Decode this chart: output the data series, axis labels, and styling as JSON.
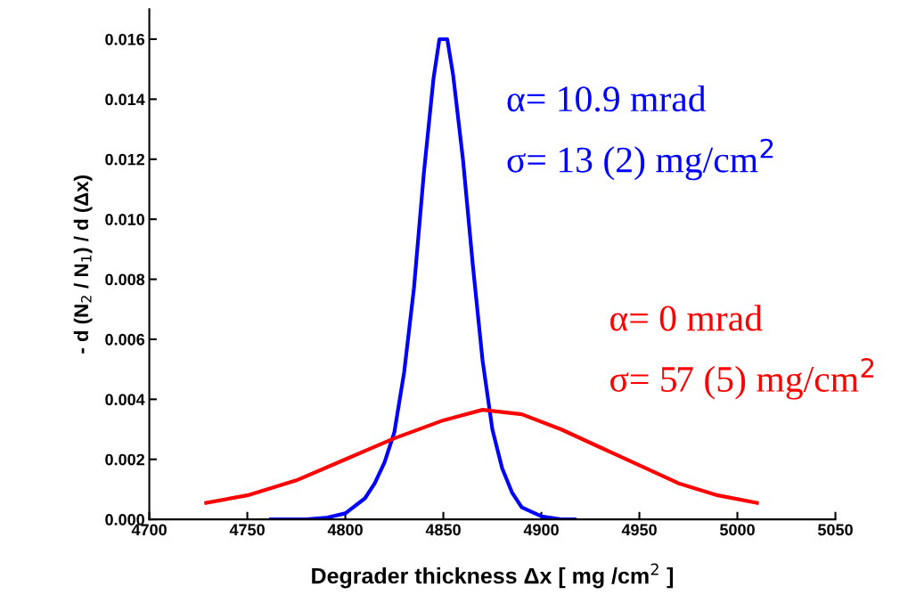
{
  "chart_data": {
    "type": "line",
    "xlabel": "Degrader thickness Δx [ mg /cm$^{2}$ ]",
    "ylabel": "- d (N$_{2}$ / N$_{1}$) / d (Δx)",
    "series": [
      {
        "color": "#0000ff",
        "x": [
          4762,
          4780,
          4790,
          4800,
          4810,
          4815,
          4820,
          4825,
          4830,
          4835,
          4840,
          4845,
          4848,
          4852,
          4855,
          4860,
          4865,
          4870,
          4875,
          4880,
          4885,
          4890,
          4900,
          4910,
          4917
        ],
        "values": [
          0.0,
          0.0,
          5e-05,
          0.0002,
          0.0007,
          0.0012,
          0.0019,
          0.0029,
          0.0049,
          0.0077,
          0.0115,
          0.0147,
          0.016,
          0.016,
          0.0148,
          0.012,
          0.0085,
          0.0053,
          0.003,
          0.0017,
          0.0009,
          0.0004,
          0.0001,
          0.0,
          0.0
        ]
      },
      {
        "color": "#ff0000",
        "x": [
          4729,
          4750,
          4775,
          4800,
          4825,
          4850,
          4870,
          4890,
          4910,
          4930,
          4950,
          4970,
          4990,
          5010
        ],
        "values": [
          0.00055,
          0.0008,
          0.0013,
          0.002,
          0.0027,
          0.0033,
          0.00365,
          0.0035,
          0.003,
          0.0024,
          0.0018,
          0.0012,
          0.0008,
          0.00055
        ]
      }
    ],
    "annotations": [
      "α= 10.9 mrad",
      "σ= 13 (2) mg/cm$^{2}$",
      "α= 0 mrad",
      "σ= 57 (5) mg/cm$^{2}$"
    ],
    "xlim": [
      4700,
      5050
    ],
    "xticks": [
      4700,
      4750,
      4800,
      4850,
      4900,
      4950,
      5000,
      5050
    ],
    "ylim": [
      0,
      0.017
    ],
    "yticks": [
      {
        "value": 0,
        "label": "0.000"
      },
      {
        "value": 0.002,
        "label": "0.002"
      },
      {
        "value": 0.004,
        "label": "0.004"
      },
      {
        "value": 0.006,
        "label": "0.006"
      },
      {
        "value": 0.008,
        "label": "0.008"
      },
      {
        "value": 0.01,
        "label": "0.010"
      },
      {
        "value": 0.012,
        "label": "0.012"
      },
      {
        "value": 0.014,
        "label": "0.014"
      },
      {
        "value": 0.016,
        "label": "0.016"
      }
    ],
    "grid": false,
    "legend": false,
    "marker": "none",
    "line_style": "solid"
  }
}
